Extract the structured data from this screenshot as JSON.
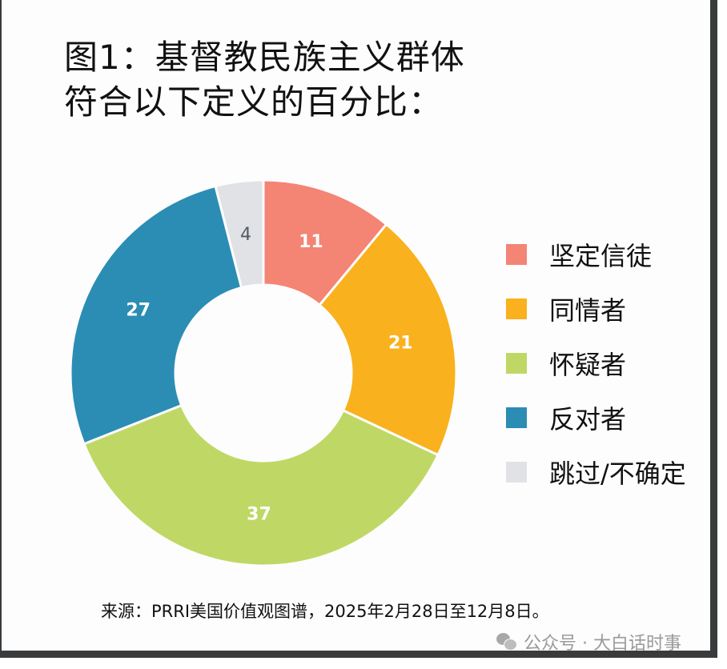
{
  "title": {
    "line1": "图1：基督教民族主义群体",
    "line2": "符合以下定义的百分比："
  },
  "chart_data": {
    "type": "pie",
    "subtype": "donut",
    "title": "图1：基督教民族主义群体符合以下定义的百分比：",
    "categories": [
      "坚定信徒",
      "同情者",
      "怀疑者",
      "反对者",
      "跳过/不确定"
    ],
    "values": [
      11,
      21,
      37,
      27,
      4
    ],
    "colors": [
      "#f48474",
      "#f9b11d",
      "#bfd865",
      "#2b8db3",
      "#e0e2e6"
    ],
    "label_colors": [
      "#ffffff",
      "#ffffff",
      "#ffffff",
      "#ffffff",
      "#555a60"
    ],
    "start_angle": "12 o'clock, clockwise",
    "legend_position": "right",
    "unit": "%"
  },
  "legend": {
    "items": [
      {
        "label": "坚定信徒",
        "color": "#f48474"
      },
      {
        "label": "同情者",
        "color": "#f9b11d"
      },
      {
        "label": "怀疑者",
        "color": "#bfd865"
      },
      {
        "label": "反对者",
        "color": "#2b8db3"
      },
      {
        "label": "跳过/不确定",
        "color": "#e0e2e6"
      }
    ]
  },
  "source": "来源：PRRI美国价值观图谱，2025年2月28日至12月8日。",
  "watermark": "公众号 · 大白话时事"
}
